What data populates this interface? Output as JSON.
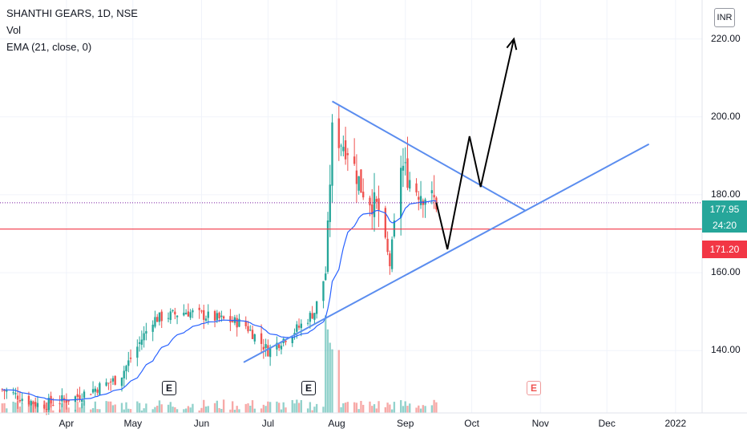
{
  "legend": {
    "title": "SHANTHI GEARS, 1D, NSE",
    "volume": "Vol",
    "ema": "EMA (21, close, 0)"
  },
  "currency": "INR",
  "price_tags": {
    "last": "177.95",
    "countdown": "24:20",
    "level": "171.20"
  },
  "earnings_markers": [
    "E",
    "E",
    "E"
  ],
  "colors": {
    "up": "#26a69a",
    "down": "#ef5350",
    "ema": "#2962ff",
    "trendline": "#5b8def",
    "level": "#f23645",
    "projection": "#000000"
  },
  "chart_data": {
    "type": "candlestick",
    "symbol": "SHANTHI GEARS",
    "interval": "1D",
    "exchange": "NSE",
    "y_ticks": [
      140,
      160,
      180,
      200,
      220
    ],
    "y_tick_labels": [
      "140.00",
      "160.00",
      "180.00",
      "200.00",
      "220.00"
    ],
    "x_ticks": [
      "Apr",
      "May",
      "Jun",
      "Jul",
      "Aug",
      "Sep",
      "Oct",
      "Nov",
      "Dec",
      "2022"
    ],
    "x_tick_dates": [
      "2021-04-01",
      "2021-05-01",
      "2021-06-01",
      "2021-07-01",
      "2021-08-01",
      "2021-09-01",
      "2021-10-01",
      "2021-11-01",
      "2021-12-01",
      "2022-01-01"
    ],
    "ylim": [
      124,
      230
    ],
    "xlim": [
      "2021-03-02",
      "2022-01-13"
    ],
    "last_price": 177.95,
    "horizontal_level": 171.2,
    "ema_period": 21,
    "price_series": {
      "start_date": "2021-03-03",
      "end_date": "2021-09-15",
      "key_points": [
        {
          "date": "2021-03-03",
          "close": 130.0
        },
        {
          "date": "2021-03-20",
          "close": 126.0
        },
        {
          "date": "2021-04-05",
          "close": 128.0
        },
        {
          "date": "2021-04-25",
          "close": 133.0
        },
        {
          "date": "2021-05-10",
          "close": 148.0
        },
        {
          "date": "2021-05-25",
          "close": 150.0
        },
        {
          "date": "2021-06-10",
          "close": 148.0
        },
        {
          "date": "2021-06-20",
          "close": 147.0
        },
        {
          "date": "2021-07-01",
          "close": 140.0
        },
        {
          "date": "2021-07-15",
          "close": 146.0
        },
        {
          "date": "2021-07-22",
          "close": 150.0
        },
        {
          "date": "2021-07-27",
          "close": 160.0
        },
        {
          "date": "2021-07-30",
          "close": 196.0
        },
        {
          "date": "2021-08-06",
          "close": 192.0
        },
        {
          "date": "2021-08-12",
          "close": 182.0
        },
        {
          "date": "2021-08-20",
          "close": 176.0
        },
        {
          "date": "2021-08-25",
          "close": 162.0
        },
        {
          "date": "2021-08-30",
          "close": 188.0
        },
        {
          "date": "2021-09-05",
          "close": 182.0
        },
        {
          "date": "2021-09-15",
          "close": 178.0
        }
      ]
    },
    "drawings": {
      "upper_trendline": [
        {
          "date": "2021-07-30",
          "price": 204
        },
        {
          "date": "2021-10-25",
          "price": 176
        }
      ],
      "lower_trendline": [
        {
          "date": "2021-06-20",
          "price": 137
        },
        {
          "date": "2021-12-20",
          "price": 193
        }
      ],
      "projection_path": [
        {
          "date": "2021-09-15",
          "price": 178
        },
        {
          "date": "2021-09-20",
          "price": 166
        },
        {
          "date": "2021-09-30",
          "price": 195
        },
        {
          "date": "2021-10-05",
          "price": 182
        },
        {
          "date": "2021-10-20",
          "price": 220
        }
      ]
    }
  }
}
